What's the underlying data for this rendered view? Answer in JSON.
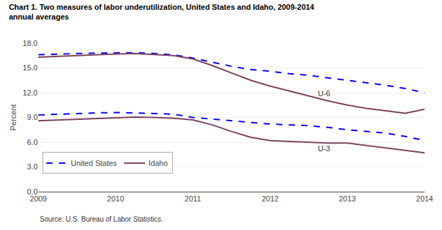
{
  "chart_data": {
    "type": "line",
    "title": "Chart 1. Two measures of labor underutilization, United States and Idaho, 2009-2014",
    "subtitle": "annual averages",
    "y_label": "Percent",
    "source": "Source: U.S. Bureau of Labor Statistics.",
    "x": [
      2009,
      2009.25,
      2009.5,
      2009.75,
      2010,
      2010.25,
      2010.5,
      2010.75,
      2011,
      2011.25,
      2011.5,
      2011.75,
      2012,
      2012.25,
      2012.5,
      2012.75,
      2013,
      2013.25,
      2013.5,
      2013.75,
      2014
    ],
    "series": [
      {
        "name": "United States",
        "color": "#0000FF",
        "line_style": "dashed",
        "values": [
          16.6,
          16.7,
          16.75,
          16.8,
          16.8,
          16.85,
          16.75,
          16.6,
          16.2,
          15.7,
          15.2,
          14.8,
          14.6,
          14.3,
          14.1,
          13.8,
          13.5,
          13.2,
          12.9,
          12.5,
          12.0
        ]
      },
      {
        "name": "Idaho",
        "color": "#7B3F5E",
        "line_style": "solid",
        "values": [
          16.3,
          16.4,
          16.5,
          16.65,
          16.7,
          16.75,
          16.65,
          16.5,
          16.1,
          15.3,
          14.4,
          13.5,
          12.8,
          12.2,
          11.6,
          11.0,
          10.5,
          10.1,
          9.8,
          9.5,
          10.0
        ]
      },
      {
        "color": "#0000FF",
        "line_style": "dashed",
        "values": [
          9.3,
          9.4,
          9.5,
          9.55,
          9.6,
          9.55,
          9.5,
          9.4,
          9.0,
          8.8,
          8.6,
          8.4,
          8.2,
          8.1,
          8.0,
          7.8,
          7.5,
          7.3,
          7.1,
          6.7,
          6.2
        ]
      },
      {
        "color": "#7B3F5E",
        "line_style": "solid",
        "values": [
          8.6,
          8.7,
          8.8,
          8.9,
          9.0,
          9.05,
          9.0,
          8.9,
          8.7,
          8.1,
          7.3,
          6.6,
          6.2,
          6.1,
          6.0,
          5.9,
          5.9,
          5.6,
          5.3,
          5.0,
          4.7
        ]
      }
    ],
    "annotations": [
      {
        "text": "U-6",
        "x": 2012.6,
        "y": 11.9
      },
      {
        "text": "U-3",
        "x": 2012.6,
        "y": 5.2
      }
    ],
    "xlim": [
      2009,
      2014
    ],
    "xticks": [
      2009,
      2010,
      2011,
      2012,
      2013,
      2014
    ],
    "ylim": [
      0,
      18.0
    ],
    "yticks": [
      {
        "value": 0.0,
        "label": "0.0"
      },
      {
        "value": 3.0,
        "label": "3.0"
      },
      {
        "value": 6.0,
        "label": "6.0"
      },
      {
        "value": 9.0,
        "label": "9.0"
      },
      {
        "value": 12.0,
        "label": "12.0"
      },
      {
        "value": 15.0,
        "label": "15.0"
      },
      {
        "value": 18.0,
        "label": "18.0"
      }
    ],
    "grid": true,
    "legend": "lower left"
  }
}
